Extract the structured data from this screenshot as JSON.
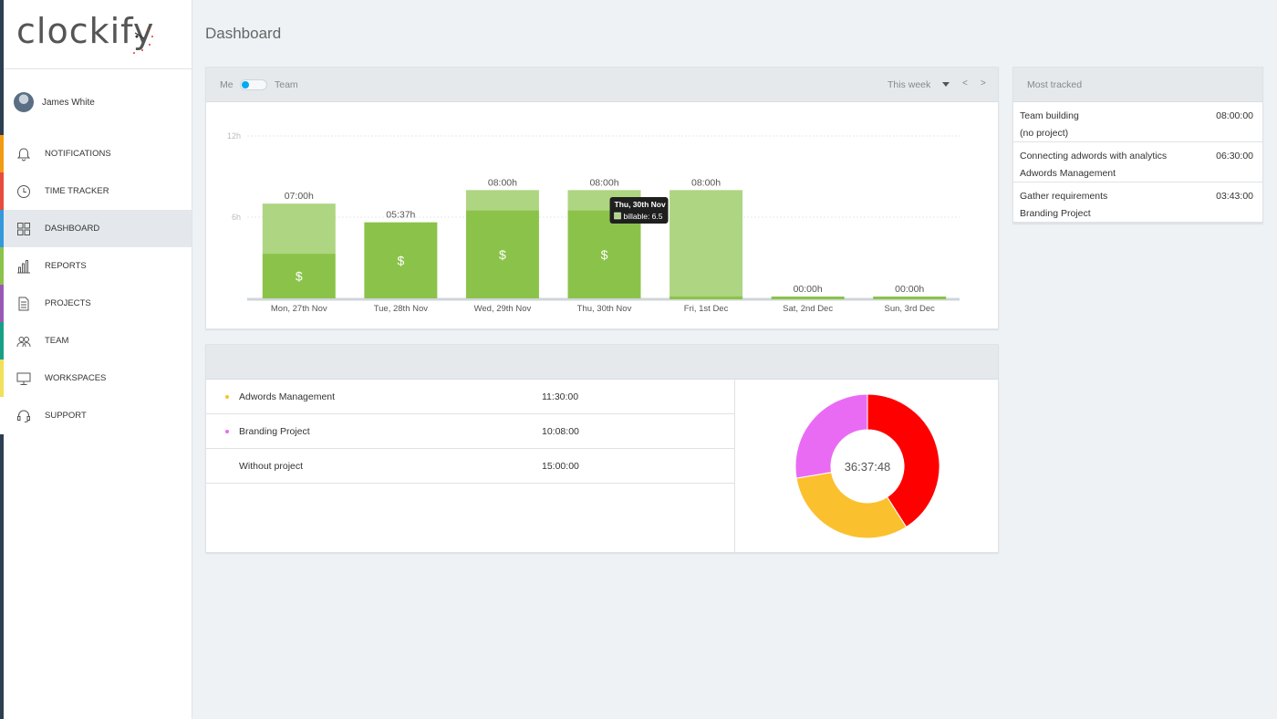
{
  "logo": {
    "text": "clockify"
  },
  "user": {
    "name": "James White"
  },
  "nav": [
    {
      "label": "NOTIFICATIONS",
      "icon": "bell-icon",
      "stripe": "#f39c12"
    },
    {
      "label": "TIME TRACKER",
      "icon": "clock-icon",
      "stripe": "#e74c3c"
    },
    {
      "label": "DASHBOARD",
      "icon": "dashboard-icon",
      "stripe": "#3498db",
      "active": true
    },
    {
      "label": "REPORTS",
      "icon": "bar-chart-icon",
      "stripe": "#8bc34a"
    },
    {
      "label": "PROJECTS",
      "icon": "document-icon",
      "stripe": "#9b59b6"
    },
    {
      "label": "TEAM",
      "icon": "team-icon",
      "stripe": "#16a085"
    },
    {
      "label": "WORKSPACES",
      "icon": "monitor-icon",
      "stripe": "#f1e05a"
    },
    {
      "label": "SUPPORT",
      "icon": "headset-icon",
      "stripe": "#ffffff"
    }
  ],
  "page": {
    "title": "Dashboard"
  },
  "chart_header": {
    "me": "Me",
    "team": "Team",
    "range": "This week",
    "prev": "<",
    "next": ">"
  },
  "colors": {
    "billable": "#8bc34a",
    "nonbillable": "#aed581",
    "accent": "#03a9f4"
  },
  "chart_data": {
    "type": "bar",
    "stacked": true,
    "categories": [
      "Mon, 27th Nov",
      "Tue, 28th Nov",
      "Wed, 29th Nov",
      "Thu, 30th Nov",
      "Fri, 1st Dec",
      "Sat, 2nd Dec",
      "Sun, 3rd Dec"
    ],
    "series": [
      {
        "name": "billable",
        "values": [
          3.3,
          5.62,
          6.5,
          6.5,
          0,
          0,
          0
        ]
      },
      {
        "values": [
          3.7,
          0,
          1.5,
          1.5,
          8,
          0,
          0
        ]
      }
    ],
    "totals": [
      "07:00h",
      "05:37h",
      "08:00h",
      "08:00h",
      "08:00h",
      "00:00h",
      "00:00h"
    ],
    "billable_marker": "$",
    "yticks": [
      "12h",
      "6h"
    ],
    "ytick_values": [
      12,
      6
    ],
    "ylim": [
      0,
      12
    ],
    "grid": true,
    "tooltip": {
      "title": "Thu, 30th Nov",
      "label": "billable: 6.5"
    }
  },
  "most_tracked": {
    "title": "Most tracked",
    "items": [
      {
        "title": "Team building",
        "project": "(no project)",
        "duration": "08:00:00"
      },
      {
        "title": "Connecting adwords with analytics",
        "project": "Adwords Management",
        "duration": "06:30:00"
      },
      {
        "title": "Gather requirements",
        "project": "Branding Project",
        "duration": "03:43:00"
      }
    ]
  },
  "projects": {
    "items": [
      {
        "name": "Adwords Management",
        "duration": "11:30:00",
        "color": "#fbc02d"
      },
      {
        "name": "Branding Project",
        "duration": "10:08:00",
        "color": "#ea6bf3"
      },
      {
        "name": "Without project",
        "duration": "15:00:00",
        "color": "#ff0000"
      }
    ],
    "total": "36:37:48"
  }
}
